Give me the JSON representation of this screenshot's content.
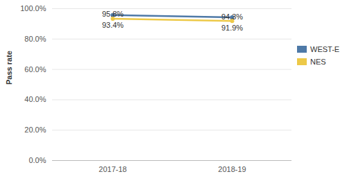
{
  "chart_data": {
    "type": "line",
    "categories": [
      "2017-18",
      "2018-19"
    ],
    "series": [
      {
        "name": "WEST-E",
        "color": "#4e79a7",
        "values": [
          95.8,
          94.3
        ],
        "value_labels": [
          "95.8%",
          "94.3%"
        ]
      },
      {
        "name": "NES",
        "color": "#edc948",
        "values": [
          93.4,
          91.9
        ],
        "value_labels": [
          "93.4%",
          "91.9%"
        ]
      }
    ],
    "y_label": "Pass rate",
    "ylim": [
      0,
      100
    ],
    "yticks": [
      {
        "value": 0,
        "label": "0.0%"
      },
      {
        "value": 20,
        "label": "20.0%"
      },
      {
        "value": 40,
        "label": "40.0%"
      },
      {
        "value": 60,
        "label": "60.0%"
      },
      {
        "value": 80,
        "label": "80.0%"
      },
      {
        "value": 100,
        "label": "100.0%"
      }
    ],
    "grid": true,
    "data_labels": true,
    "legend": "right",
    "marker": "circle"
  }
}
